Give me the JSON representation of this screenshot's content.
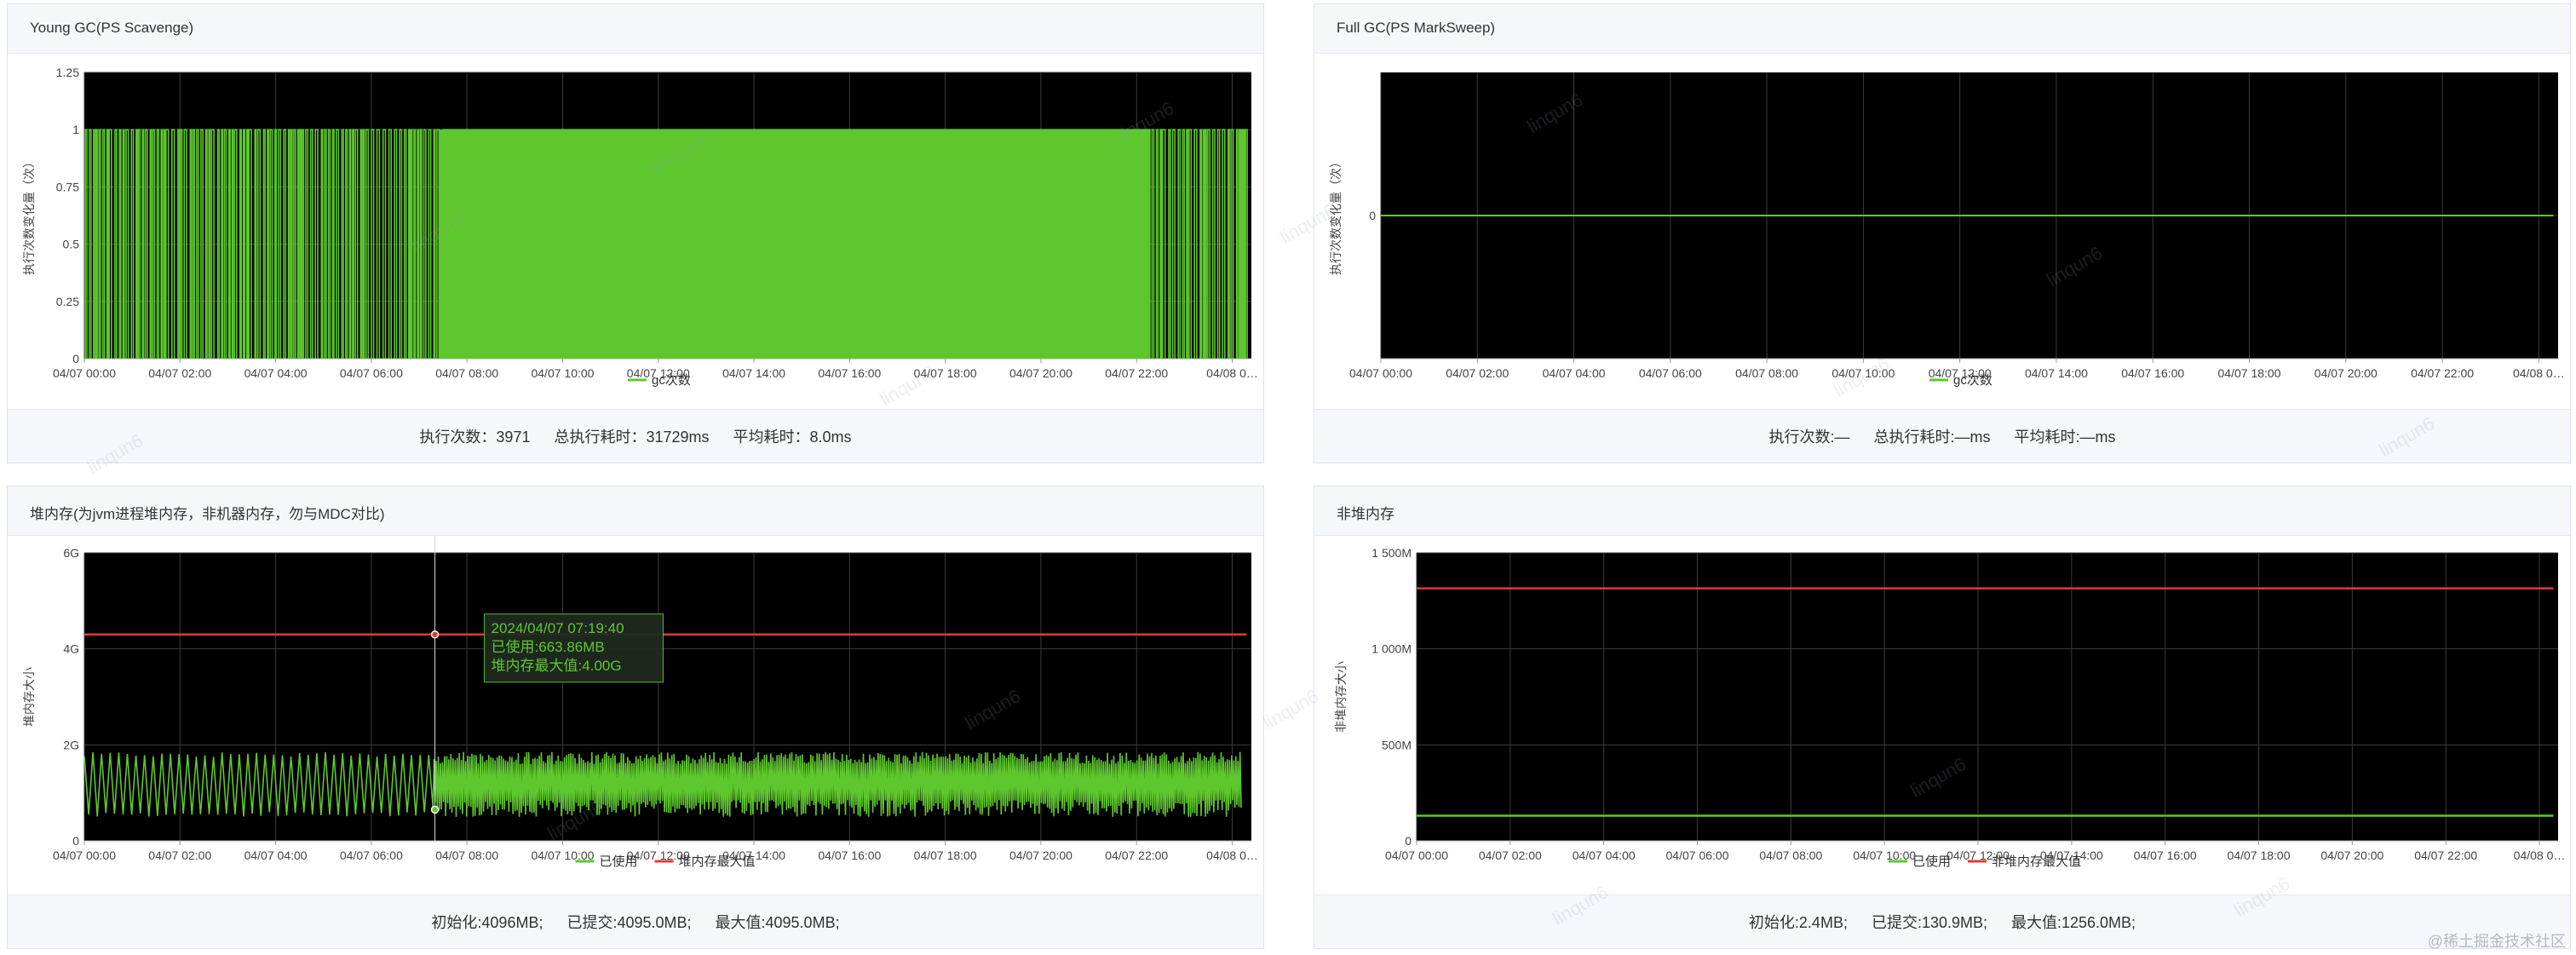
{
  "watermark": "linqun6",
  "site_mark": "@稀土掘金技术社区",
  "colors": {
    "used": "#5ec72e",
    "max": "#e43b2f",
    "plot_bg": "#000000",
    "grid": "#3c3c3c"
  },
  "panels": [
    {
      "id": "young-gc",
      "title": "Young GC(PS Scavenge)",
      "ylabel": "执行次数变化量（次）",
      "footer": [
        "执行次数：3971",
        "总执行耗时：31729ms",
        "平均耗时：8.0ms"
      ],
      "chart_data": {
        "type": "line",
        "title": "Young GC(PS Scavenge)",
        "xlabel": "",
        "ylabel": "执行次数变化量（次）",
        "ylim": [
          0,
          1.25
        ],
        "yticks": [
          {
            "value": 0,
            "label": "0"
          },
          {
            "value": 0.25,
            "label": "0.25"
          },
          {
            "value": 0.5,
            "label": "0.5"
          },
          {
            "value": 0.75,
            "label": "0.75"
          },
          {
            "value": 1,
            "label": "1"
          },
          {
            "value": 1.25,
            "label": "1.25"
          }
        ],
        "x_ticks": [
          "04/07 00:00",
          "04/07 02:00",
          "04/07 04:00",
          "04/07 06:00",
          "04/07 08:00",
          "04/07 10:00",
          "04/07 12:00",
          "04/07 14:00",
          "04/07 16:00",
          "04/07 18:00",
          "04/07 20:00",
          "04/07 22:00",
          "04/08 0…"
        ],
        "grid": true,
        "legend_position": "bottom-center",
        "series": [
          {
            "name": "gc次数",
            "color": "#5ec72e",
            "pattern": "oscillating 0–1",
            "segments": [
              {
                "from": 0,
                "to": 7.4,
                "dense": false
              },
              {
                "from": 7.4,
                "to": 22.2,
                "dense": true
              },
              {
                "from": 22.2,
                "to": 24.2,
                "dense": false
              }
            ]
          }
        ]
      }
    },
    {
      "id": "full-gc",
      "title": "Full GC(PS MarkSweep)",
      "ylabel": "执行次数变化量（次）",
      "footer": [
        "执行次数:—",
        "总执行耗时:—ms",
        "平均耗时:—ms"
      ],
      "chart_data": {
        "type": "line",
        "title": "Full GC(PS MarkSweep)",
        "xlabel": "",
        "ylabel": "执行次数变化量（次）",
        "yticks": [
          {
            "value": 0,
            "label": "0"
          }
        ],
        "ylim": [
          -1,
          1
        ],
        "x_ticks": [
          "04/07 00:00",
          "04/07 02:00",
          "04/07 04:00",
          "04/07 06:00",
          "04/07 08:00",
          "04/07 10:00",
          "04/07 12:00",
          "04/07 14:00",
          "04/07 16:00",
          "04/07 18:00",
          "04/07 20:00",
          "04/07 22:00",
          "04/08 0…"
        ],
        "grid": true,
        "legend_position": "bottom-center",
        "series": [
          {
            "name": "gc次数",
            "color": "#5ec72e",
            "values": [
              0,
              0
            ]
          }
        ]
      }
    },
    {
      "id": "heap-memory",
      "title": "堆内存(为jvm进程堆内存，非机器内存，勿与MDC对比)",
      "ylabel": "堆内存大小",
      "footer": [
        "初始化:4096MB;",
        "已提交:4095.0MB;",
        "最大值:4095.0MB;"
      ],
      "tooltip": {
        "time": "2024/04/07 07:19:40",
        "used": "已使用:663.86MB",
        "max": "堆内存最大值:4.00G",
        "x_hours": 7.33
      },
      "chart_data": {
        "type": "line",
        "title": "堆内存(为jvm进程堆内存，非机器内存，勿与MDC对比)",
        "xlabel": "",
        "ylabel": "堆内存大小",
        "ylim": [
          0,
          6
        ],
        "yticks": [
          {
            "value": 0,
            "label": "0"
          },
          {
            "value": 2,
            "label": "2G"
          },
          {
            "value": 4,
            "label": "4G"
          },
          {
            "value": 6,
            "label": "6G"
          }
        ],
        "x_ticks": [
          "04/07 00:00",
          "04/07 02:00",
          "04/07 04:00",
          "04/07 06:00",
          "04/07 08:00",
          "04/07 10:00",
          "04/07 12:00",
          "04/07 14:00",
          "04/07 16:00",
          "04/07 18:00",
          "04/07 20:00",
          "04/07 22:00",
          "04/08 0…"
        ],
        "grid": true,
        "legend_position": "bottom-center",
        "series": [
          {
            "name": "已使用",
            "color": "#5ec72e",
            "range_gb": [
              0.5,
              1.85
            ]
          },
          {
            "name": "堆内存最大值",
            "color": "#e43b2f",
            "value_gb": 4.3
          }
        ]
      }
    },
    {
      "id": "non-heap-memory",
      "title": "非堆内存",
      "ylabel": "非堆内存大小",
      "footer": [
        "初始化:2.4MB;",
        "已提交:130.9MB;",
        "最大值:1256.0MB;"
      ],
      "chart_data": {
        "type": "line",
        "title": "非堆内存",
        "xlabel": "",
        "ylabel": "非堆内存大小",
        "ylim": [
          0,
          1500
        ],
        "yticks": [
          {
            "value": 0,
            "label": "0"
          },
          {
            "value": 500,
            "label": "500M"
          },
          {
            "value": 1000,
            "label": "1 000M"
          },
          {
            "value": 1500,
            "label": "1 500M"
          }
        ],
        "x_ticks": [
          "04/07 00:00",
          "04/07 02:00",
          "04/07 04:00",
          "04/07 06:00",
          "04/07 08:00",
          "04/07 10:00",
          "04/07 12:00",
          "04/07 14:00",
          "04/07 16:00",
          "04/07 18:00",
          "04/07 20:00",
          "04/07 22:00",
          "04/08 0…"
        ],
        "grid": true,
        "legend_position": "bottom-center",
        "series": [
          {
            "name": "已使用",
            "color": "#5ec72e",
            "values": [
              130.9,
              130.9
            ]
          },
          {
            "name": "非堆内存最大值",
            "color": "#e43b2f",
            "values": [
              1315,
              1315
            ]
          }
        ]
      }
    }
  ]
}
